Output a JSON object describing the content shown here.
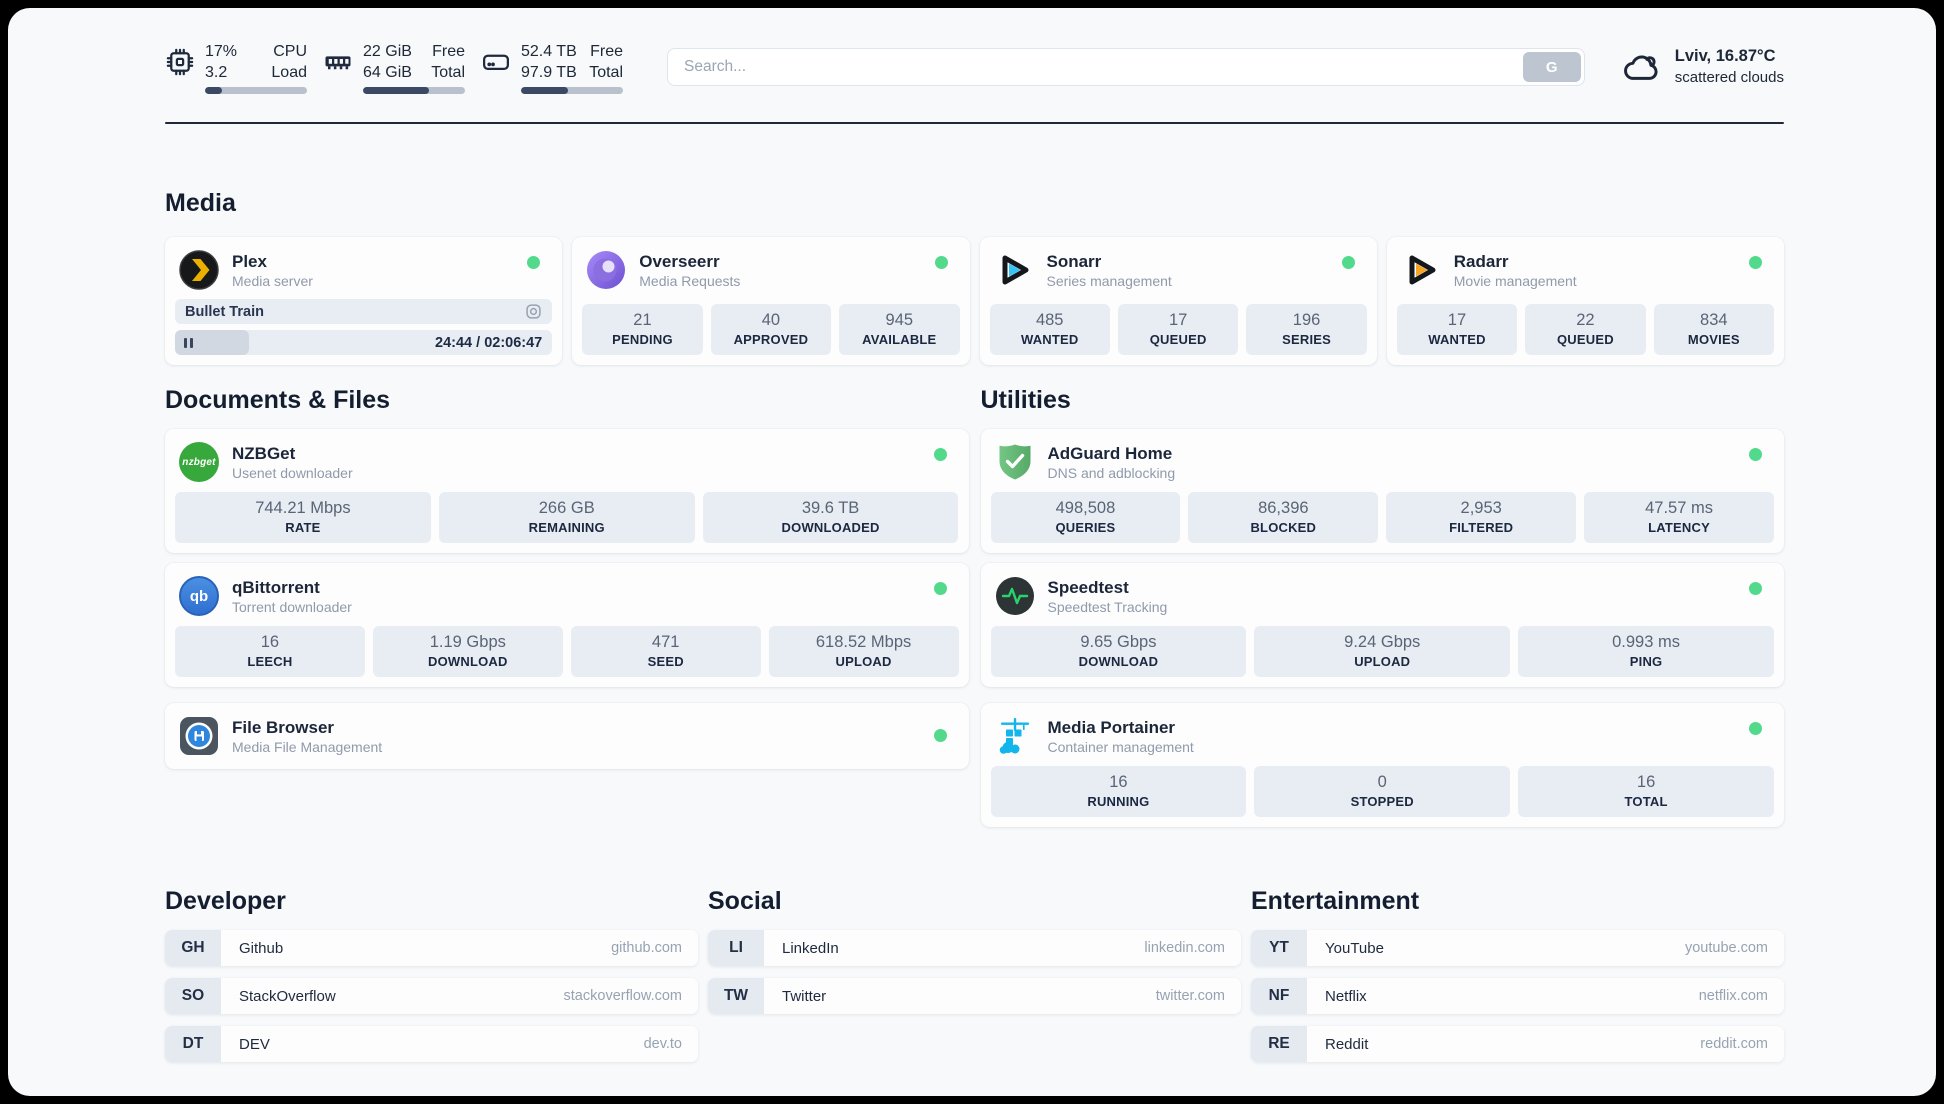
{
  "theme": {
    "page_bg": "#f7f9fb",
    "frame_bg": "#000000",
    "card_bg": "#fdfdfe",
    "stat_bg": "#e8edf4",
    "text_dark": "#1b2638",
    "text_muted": "#8f9aab",
    "status_green": "#53d98c",
    "bar_fill": "#3c4964",
    "bar_track": "#b9c1cd"
  },
  "topbar": {
    "resources": [
      {
        "icon": "cpu-icon",
        "value1": "17%",
        "label1": "CPU",
        "value2": "3.2",
        "label2": "Load",
        "progress_pct": 17
      },
      {
        "icon": "memory-icon",
        "value1": "22 GiB",
        "label1": "Free",
        "value2": "64 GiB",
        "label2": "Total",
        "progress_pct": 65
      },
      {
        "icon": "disk-icon",
        "value1": "52.4 TB",
        "label1": "Free",
        "value2": "97.9 TB",
        "label2": "Total",
        "progress_pct": 46
      }
    ],
    "search": {
      "placeholder": "Search...",
      "button_label": "G"
    },
    "weather": {
      "line1": "Lviv, 16.87°C",
      "line2": "scattered clouds"
    }
  },
  "media": {
    "title": "Media",
    "plex": {
      "name": "Plex",
      "desc": "Media server",
      "now_playing": "Bullet Train",
      "time": "24:44 / 02:06:47",
      "progress_pct": 19.5
    },
    "overseerr": {
      "name": "Overseerr",
      "desc": "Media Requests",
      "stats": [
        {
          "value": "21",
          "label": "PENDING"
        },
        {
          "value": "40",
          "label": "APPROVED"
        },
        {
          "value": "945",
          "label": "AVAILABLE"
        }
      ]
    },
    "sonarr": {
      "name": "Sonarr",
      "desc": "Series management",
      "stats": [
        {
          "value": "485",
          "label": "WANTED"
        },
        {
          "value": "17",
          "label": "QUEUED"
        },
        {
          "value": "196",
          "label": "SERIES"
        }
      ]
    },
    "radarr": {
      "name": "Radarr",
      "desc": "Movie management",
      "stats": [
        {
          "value": "17",
          "label": "WANTED"
        },
        {
          "value": "22",
          "label": "QUEUED"
        },
        {
          "value": "834",
          "label": "MOVIES"
        }
      ]
    }
  },
  "documents": {
    "title": "Documents & Files",
    "nzbget": {
      "name": "NZBGet",
      "desc": "Usenet downloader",
      "icon_text": "nzbget",
      "stats": [
        {
          "value": "744.21 Mbps",
          "label": "RATE"
        },
        {
          "value": "266 GB",
          "label": "REMAINING"
        },
        {
          "value": "39.6 TB",
          "label": "DOWNLOADED"
        }
      ]
    },
    "qbittorrent": {
      "name": "qBittorrent",
      "desc": "Torrent downloader",
      "icon_text": "qb",
      "stats": [
        {
          "value": "16",
          "label": "LEECH"
        },
        {
          "value": "1.19 Gbps",
          "label": "DOWNLOAD"
        },
        {
          "value": "471",
          "label": "SEED"
        },
        {
          "value": "618.52 Mbps",
          "label": "UPLOAD"
        }
      ]
    },
    "filebrowser": {
      "name": "File Browser",
      "desc": "Media File Management"
    }
  },
  "utilities": {
    "title": "Utilities",
    "adguard": {
      "name": "AdGuard Home",
      "desc": "DNS and adblocking",
      "stats": [
        {
          "value": "498,508",
          "label": "QUERIES"
        },
        {
          "value": "86,396",
          "label": "BLOCKED"
        },
        {
          "value": "2,953",
          "label": "FILTERED"
        },
        {
          "value": "47.57 ms",
          "label": "LATENCY"
        }
      ]
    },
    "speedtest": {
      "name": "Speedtest",
      "desc": "Speedtest Tracking",
      "stats": [
        {
          "value": "9.65 Gbps",
          "label": "DOWNLOAD"
        },
        {
          "value": "9.24 Gbps",
          "label": "UPLOAD"
        },
        {
          "value": "0.993 ms",
          "label": "PING"
        }
      ]
    },
    "portainer": {
      "name": "Media Portainer",
      "desc": "Container management",
      "stats": [
        {
          "value": "16",
          "label": "RUNNING"
        },
        {
          "value": "0",
          "label": "STOPPED"
        },
        {
          "value": "16",
          "label": "TOTAL"
        }
      ]
    }
  },
  "bookmarks": {
    "developer": {
      "title": "Developer",
      "items": [
        {
          "abbr": "GH",
          "name": "Github",
          "domain": "github.com"
        },
        {
          "abbr": "SO",
          "name": "StackOverflow",
          "domain": "stackoverflow.com"
        },
        {
          "abbr": "DT",
          "name": "DEV",
          "domain": "dev.to"
        }
      ]
    },
    "social": {
      "title": "Social",
      "items": [
        {
          "abbr": "LI",
          "name": "LinkedIn",
          "domain": "linkedin.com"
        },
        {
          "abbr": "TW",
          "name": "Twitter",
          "domain": "twitter.com"
        }
      ]
    },
    "entertainment": {
      "title": "Entertainment",
      "items": [
        {
          "abbr": "YT",
          "name": "YouTube",
          "domain": "youtube.com"
        },
        {
          "abbr": "NF",
          "name": "Netflix",
          "domain": "netflix.com"
        },
        {
          "abbr": "RE",
          "name": "Reddit",
          "domain": "reddit.com"
        }
      ]
    }
  }
}
